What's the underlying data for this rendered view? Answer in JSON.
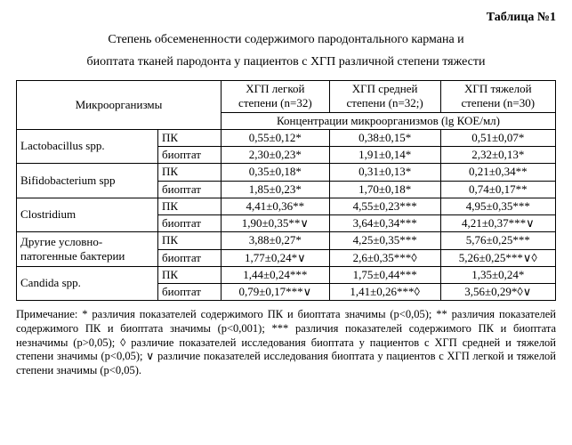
{
  "header": {
    "table_label": "Таблица №1",
    "caption_line1": "Степень обсемененности содержимого пародонтального кармана и",
    "caption_line2": "биоптата тканей пародонта у пациентов с ХГП различной степени тяжести"
  },
  "table": {
    "col_headers": {
      "org": "Микроорганизмы",
      "c1": "ХГП легкой степени (n=32)",
      "c2": "ХГП средней степени (n=32;)",
      "c3": "ХГП тяжелой степени (n=30)",
      "sub": "Концентрации микроорганизмов (lg КОЕ/мл)"
    },
    "groups": [
      {
        "organism": "Lactobacillus spp.",
        "rows": [
          {
            "sample": "ПК",
            "c1": "0,55±0,12*",
            "c2": "0,38±0,15*",
            "c3": "0,51±0,07*"
          },
          {
            "sample": "биоптат",
            "c1": "2,30±0,23*",
            "c2": "1,91±0,14*",
            "c3": "2,32±0,13*"
          }
        ]
      },
      {
        "organism": "Bifidobacterium spp",
        "rows": [
          {
            "sample": "ПК",
            "c1": "0,35±0,18*",
            "c2": "0,31±0,13*",
            "c3": "0,21±0,34**"
          },
          {
            "sample": "биоптат",
            "c1": "1,85±0,23*",
            "c2": "1,70±0,18*",
            "c3": "0,74±0,17**"
          }
        ]
      },
      {
        "organism": "Clostridium",
        "rows": [
          {
            "sample": "ПК",
            "c1": "4,41±0,36**",
            "c2": "4,55±0,23***",
            "c3": "4,95±0,35***"
          },
          {
            "sample": "биоптат",
            "c1": "1,90±0,35**∨",
            "c2": "3,64±0,34***",
            "c3": "4,21±0,37***∨"
          }
        ]
      },
      {
        "organism": "Другие условно-патогенные бактерии",
        "rows": [
          {
            "sample": "ПК",
            "c1": "3,88±0,27*",
            "c2": "4,25±0,35***",
            "c3": "5,76±0,25***"
          },
          {
            "sample": "биоптат",
            "c1": "1,77±0,24*∨",
            "c2": "2,6±0,35***◊",
            "c3": "5,26±0,25***∨◊"
          }
        ]
      },
      {
        "organism": "Candida spp.",
        "rows": [
          {
            "sample": "ПК",
            "c1": "1,44±0,24***",
            "c2": "1,75±0,44***",
            "c3": "1,35±0,24*"
          },
          {
            "sample": "биоптат",
            "c1": "0,79±0,17***∨",
            "c2": "1,41±0,26***◊",
            "c3": "3,56±0,29*◊∨"
          }
        ]
      }
    ]
  },
  "note": "Примечание: * различия показателей содержимого ПК и биоптата значимы (p<0,05); ** различия показателей содержимого ПК и биоптата значимы (p<0,001); *** различия показателей содержимого ПК и биоптата   незначимы (p>0,05); ◊ различие показателей исследования биоптата у пациентов с ХГП средней и тяжелой степени значимы (p<0,05); ∨ различие показателей исследования биоптата у пациентов с ХГП легкой и тяжелой степени значимы (p<0,05)."
}
